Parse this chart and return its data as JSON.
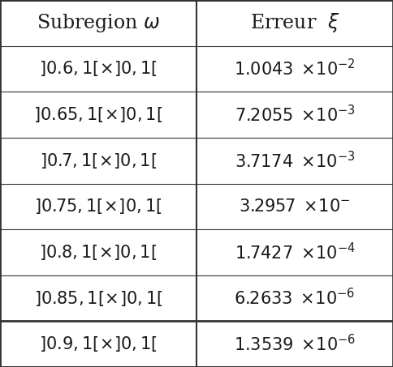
{
  "col1_header": "Subregion $\\omega$",
  "col2_header": "Erreur  $\\xi$",
  "subregions": [
    "]0.6,\\!1[\\!\\times\\!]0,\\!1[",
    "]0.65,\\!1[\\!\\times\\!]0,\\!1[",
    "]0.7,\\!1[\\!\\times\\!]0,\\!1[",
    "]0.75,\\!1[\\!\\times\\!]0,\\!1[",
    "]0.8,\\!1[\\!\\times\\!]0,\\!1[",
    "]0.85,\\!1[\\!\\times\\!]0,\\!1[",
    "]0.9,\\!1[\\!\\times\\!]0,\\!1["
  ],
  "erreur_mantissas": [
    "1.0043",
    "7.2055",
    "3.7174",
    "3.2957",
    "1.7427",
    "6.2633",
    "1.3539"
  ],
  "erreur_exponents": [
    "-2",
    "-3",
    "-3",
    "-",
    "-4",
    "-6",
    "-6"
  ],
  "bg_color": "#ffffff",
  "text_color": "#1a1a1a",
  "border_color": "#333333",
  "header_fontsize": 17,
  "cell_fontsize": 15,
  "col_split": 0.5,
  "fig_width": 4.84,
  "fig_height": 4.53,
  "dpi": 100
}
